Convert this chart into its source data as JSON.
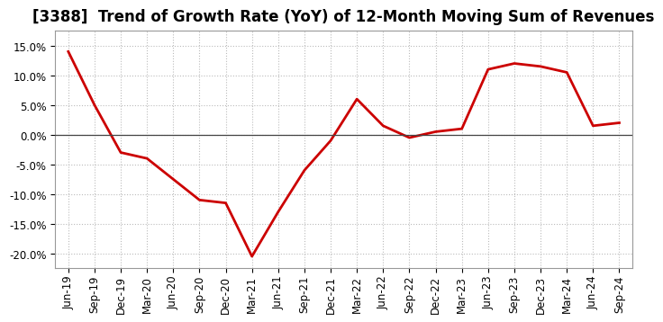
{
  "title": "[3388]  Trend of Growth Rate (YoY) of 12-Month Moving Sum of Revenues",
  "x_labels": [
    "Jun-19",
    "Sep-19",
    "Dec-19",
    "Mar-20",
    "Jun-20",
    "Sep-20",
    "Dec-20",
    "Mar-21",
    "Jun-21",
    "Sep-21",
    "Dec-21",
    "Mar-22",
    "Jun-22",
    "Sep-22",
    "Dec-22",
    "Mar-23",
    "Jun-23",
    "Sep-23",
    "Dec-23",
    "Mar-24",
    "Jun-24",
    "Sep-24"
  ],
  "y_values": [
    0.14,
    0.05,
    -0.03,
    -0.04,
    -0.075,
    -0.11,
    -0.115,
    -0.205,
    -0.13,
    -0.06,
    -0.01,
    0.06,
    0.015,
    -0.005,
    0.005,
    0.01,
    0.11,
    0.12,
    0.115,
    0.105,
    0.015,
    0.02
  ],
  "ylim": [
    -0.225,
    0.175
  ],
  "yticks": [
    0.15,
    0.1,
    0.05,
    0.0,
    -0.05,
    -0.1,
    -0.15,
    -0.2
  ],
  "line_color": "#cc0000",
  "line_width": 2.0,
  "background_color": "#ffffff",
  "plot_bg_color": "#ffffff",
  "grid_color": "#bbbbbb",
  "title_fontsize": 12,
  "tick_fontsize": 8.5,
  "zero_line_color": "#444444"
}
